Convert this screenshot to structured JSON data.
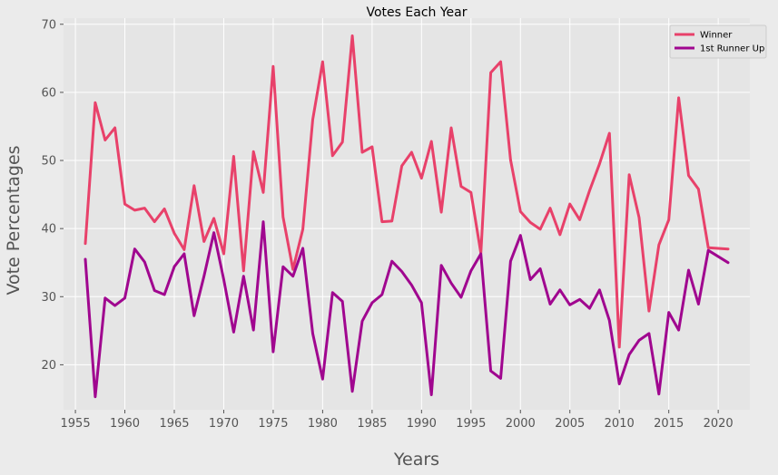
{
  "chart_data": {
    "type": "line",
    "title": "Votes Each Year",
    "xlabel": "Years",
    "ylabel": "Vote Percentages",
    "xlim": [
      1953.8,
      2023.2
    ],
    "ylim": [
      13.4,
      70.9
    ],
    "xticks": [
      1955,
      1960,
      1965,
      1970,
      1975,
      1980,
      1985,
      1990,
      1995,
      2000,
      2005,
      2010,
      2015,
      2020
    ],
    "xtick_labels": [
      "1955",
      "1960",
      "1965",
      "1970",
      "1975",
      "1980",
      "1985",
      "1990",
      "1995",
      "2000",
      "2005",
      "2010",
      "2015",
      "2020"
    ],
    "yticks": [
      20,
      30,
      40,
      50,
      60,
      70
    ],
    "ytick_labels": [
      "20",
      "30",
      "40",
      "50",
      "60",
      "70"
    ],
    "grid": true,
    "legend_position": "top-right",
    "x": [
      1956,
      1957,
      1958,
      1959,
      1960,
      1961,
      1962,
      1963,
      1964,
      1965,
      1966,
      1967,
      1968,
      1969,
      1970,
      1971,
      1972,
      1973,
      1974,
      1975,
      1976,
      1977,
      1978,
      1979,
      1980,
      1981,
      1982,
      1983,
      1984,
      1985,
      1986,
      1987,
      1988,
      1989,
      1990,
      1991,
      1992,
      1993,
      1994,
      1995,
      1996,
      1997,
      1998,
      1999,
      2000,
      2001,
      2002,
      2003,
      2004,
      2005,
      2006,
      2007,
      2008,
      2009,
      2010,
      2011,
      2012,
      2013,
      2014,
      2015,
      2016,
      2017,
      2018,
      2019,
      2021
    ],
    "series": [
      {
        "name": "Winner",
        "color": "#e8416a",
        "values": [
          37.8,
          58.5,
          53.0,
          54.8,
          43.6,
          42.7,
          43.0,
          41.0,
          42.9,
          39.3,
          36.9,
          46.3,
          38.1,
          41.5,
          36.3,
          50.6,
          33.8,
          51.3,
          45.3,
          63.8,
          41.7,
          34.0,
          39.9,
          56.0,
          64.5,
          50.7,
          52.7,
          68.3,
          51.2,
          52.0,
          41.0,
          41.1,
          49.2,
          51.2,
          47.4,
          52.8,
          42.4,
          54.8,
          46.2,
          45.3,
          36.4,
          62.9,
          64.5,
          50.1,
          42.5,
          40.9,
          39.9,
          43.0,
          39.1,
          43.6,
          41.3,
          45.6,
          49.5,
          54.0,
          22.6,
          47.9,
          41.6,
          27.9,
          37.6,
          41.3,
          59.2,
          47.8,
          45.8,
          37.2,
          37.0
        ]
      },
      {
        "name": "1st Runner Up",
        "color": "#a0068f",
        "values": [
          35.5,
          15.3,
          29.8,
          28.7,
          29.8,
          37.0,
          35.1,
          30.9,
          30.3,
          34.4,
          36.3,
          27.2,
          33.0,
          39.4,
          32.5,
          24.8,
          33.0,
          25.1,
          41.0,
          21.9,
          34.4,
          33.0,
          37.1,
          24.6,
          17.9,
          30.6,
          29.3,
          16.1,
          26.4,
          29.1,
          30.3,
          35.2,
          33.7,
          31.7,
          29.1,
          15.6,
          34.6,
          32.0,
          29.9,
          33.8,
          36.3,
          19.1,
          18.0,
          35.2,
          39.0,
          32.5,
          34.1,
          28.9,
          31.0,
          28.8,
          29.6,
          28.3,
          31.0,
          26.5,
          17.2,
          21.5,
          23.6,
          24.6,
          15.7,
          27.7,
          25.1,
          33.9,
          28.9,
          36.8,
          35.0
        ]
      }
    ]
  }
}
